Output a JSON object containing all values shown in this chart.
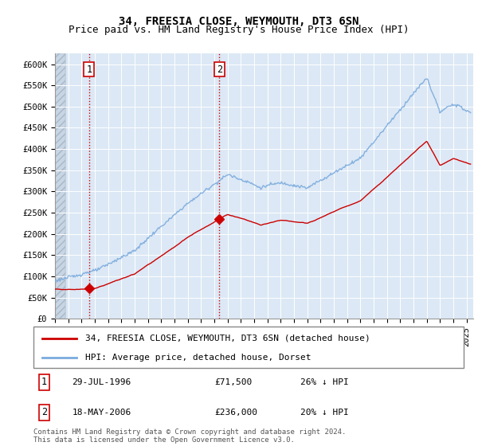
{
  "title": "34, FREESIA CLOSE, WEYMOUTH, DT3 6SN",
  "subtitle": "Price paid vs. HM Land Registry's House Price Index (HPI)",
  "ylim": [
    0,
    625000
  ],
  "yticks": [
    0,
    50000,
    100000,
    150000,
    200000,
    250000,
    300000,
    350000,
    400000,
    450000,
    500000,
    550000,
    600000
  ],
  "ytick_labels": [
    "£0",
    "£50K",
    "£100K",
    "£150K",
    "£200K",
    "£250K",
    "£300K",
    "£350K",
    "£400K",
    "£450K",
    "£500K",
    "£550K",
    "£600K"
  ],
  "xlim_start": 1994.0,
  "xlim_end": 2025.5,
  "hpi_color": "#7aaadd",
  "price_color": "#cc0000",
  "annotation_box_color": "#cc0000",
  "background_plot": "#dce8f5",
  "grid_color": "#ffffff",
  "sale1_x": 1996.57,
  "sale1_y": 71500,
  "sale1_label": "1",
  "sale1_date": "29-JUL-1996",
  "sale1_price": "£71,500",
  "sale1_hpi": "26% ↓ HPI",
  "sale2_x": 2006.38,
  "sale2_y": 236000,
  "sale2_label": "2",
  "sale2_date": "18-MAY-2006",
  "sale2_price": "£236,000",
  "sale2_hpi": "20% ↓ HPI",
  "legend_line1": "34, FREESIA CLOSE, WEYMOUTH, DT3 6SN (detached house)",
  "legend_line2": "HPI: Average price, detached house, Dorset",
  "footer": "Contains HM Land Registry data © Crown copyright and database right 2024.\nThis data is licensed under the Open Government Licence v3.0.",
  "title_fontsize": 10,
  "subtitle_fontsize": 9,
  "tick_fontsize": 7.5,
  "legend_fontsize": 8,
  "footer_fontsize": 6.5
}
